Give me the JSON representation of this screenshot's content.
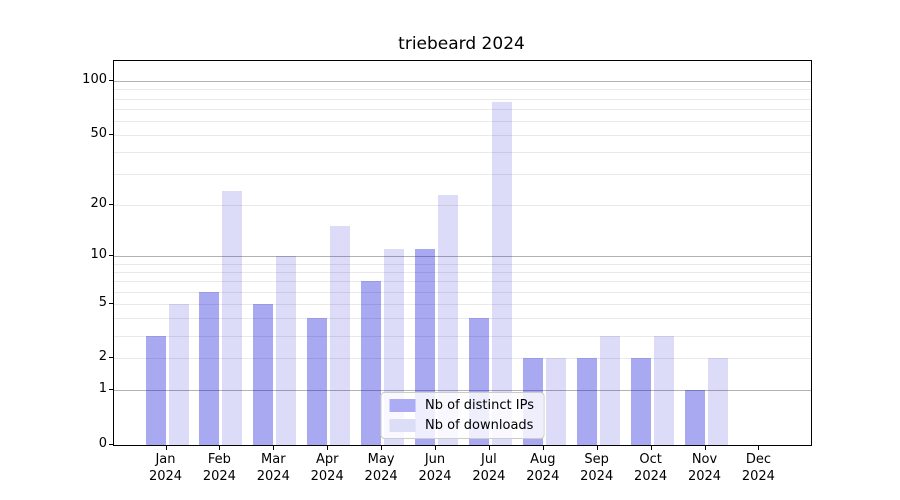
{
  "title": "triebeard 2024",
  "chart_data": {
    "type": "bar",
    "title": "triebeard 2024",
    "categories": [
      "Jan 2024",
      "Feb 2024",
      "Mar 2024",
      "Apr 2024",
      "May 2024",
      "Jun 2024",
      "Jul 2024",
      "Aug 2024",
      "Sep 2024",
      "Oct 2024",
      "Nov 2024",
      "Dec 2024"
    ],
    "x_tick_labels": [
      {
        "month": "Jan",
        "year": "2024"
      },
      {
        "month": "Feb",
        "year": "2024"
      },
      {
        "month": "Mar",
        "year": "2024"
      },
      {
        "month": "Apr",
        "year": "2024"
      },
      {
        "month": "May",
        "year": "2024"
      },
      {
        "month": "Jun",
        "year": "2024"
      },
      {
        "month": "Jul",
        "year": "2024"
      },
      {
        "month": "Aug",
        "year": "2024"
      },
      {
        "month": "Sep",
        "year": "2024"
      },
      {
        "month": "Oct",
        "year": "2024"
      },
      {
        "month": "Nov",
        "year": "2024"
      },
      {
        "month": "Dec",
        "year": "2024"
      }
    ],
    "series": [
      {
        "name": "Nb of distinct IPs",
        "color": "rgba(10,10,215,0.35)",
        "legend_color": "#abacf3",
        "values": [
          3,
          6,
          5,
          4,
          7,
          11,
          4,
          2,
          2,
          2,
          1,
          0
        ]
      },
      {
        "name": "Nb of downloads",
        "color": "rgba(10,10,215,0.14)",
        "legend_color": "#dcddf6",
        "values": [
          5,
          24,
          10,
          15,
          11,
          23,
          77,
          2,
          3,
          3,
          2,
          0
        ]
      }
    ],
    "yscale": "log1p",
    "ylabel": "",
    "xlabel": "",
    "ylim": [
      0,
      130
    ],
    "y_axis": {
      "tick_labels": [
        "100",
        "50",
        "20",
        "10",
        "5",
        "2",
        "1",
        "0"
      ],
      "tick_values": [
        100,
        50,
        20,
        10,
        5,
        2,
        1,
        0
      ],
      "major_grid": [
        1,
        10,
        100
      ],
      "minor_grid": [
        2,
        3,
        4,
        5,
        6,
        7,
        8,
        9,
        20,
        30,
        40,
        50,
        60,
        70,
        80,
        90
      ]
    },
    "grid": true,
    "legend_position": "lower center"
  },
  "colors": {
    "bar_distinct_ips": "#abacf3",
    "bar_downloads": "#dcddf6",
    "grid_major": "#b2b2b2",
    "grid_minor": "#e9e9e9",
    "spine": "#000000",
    "background": "#ffffff"
  }
}
